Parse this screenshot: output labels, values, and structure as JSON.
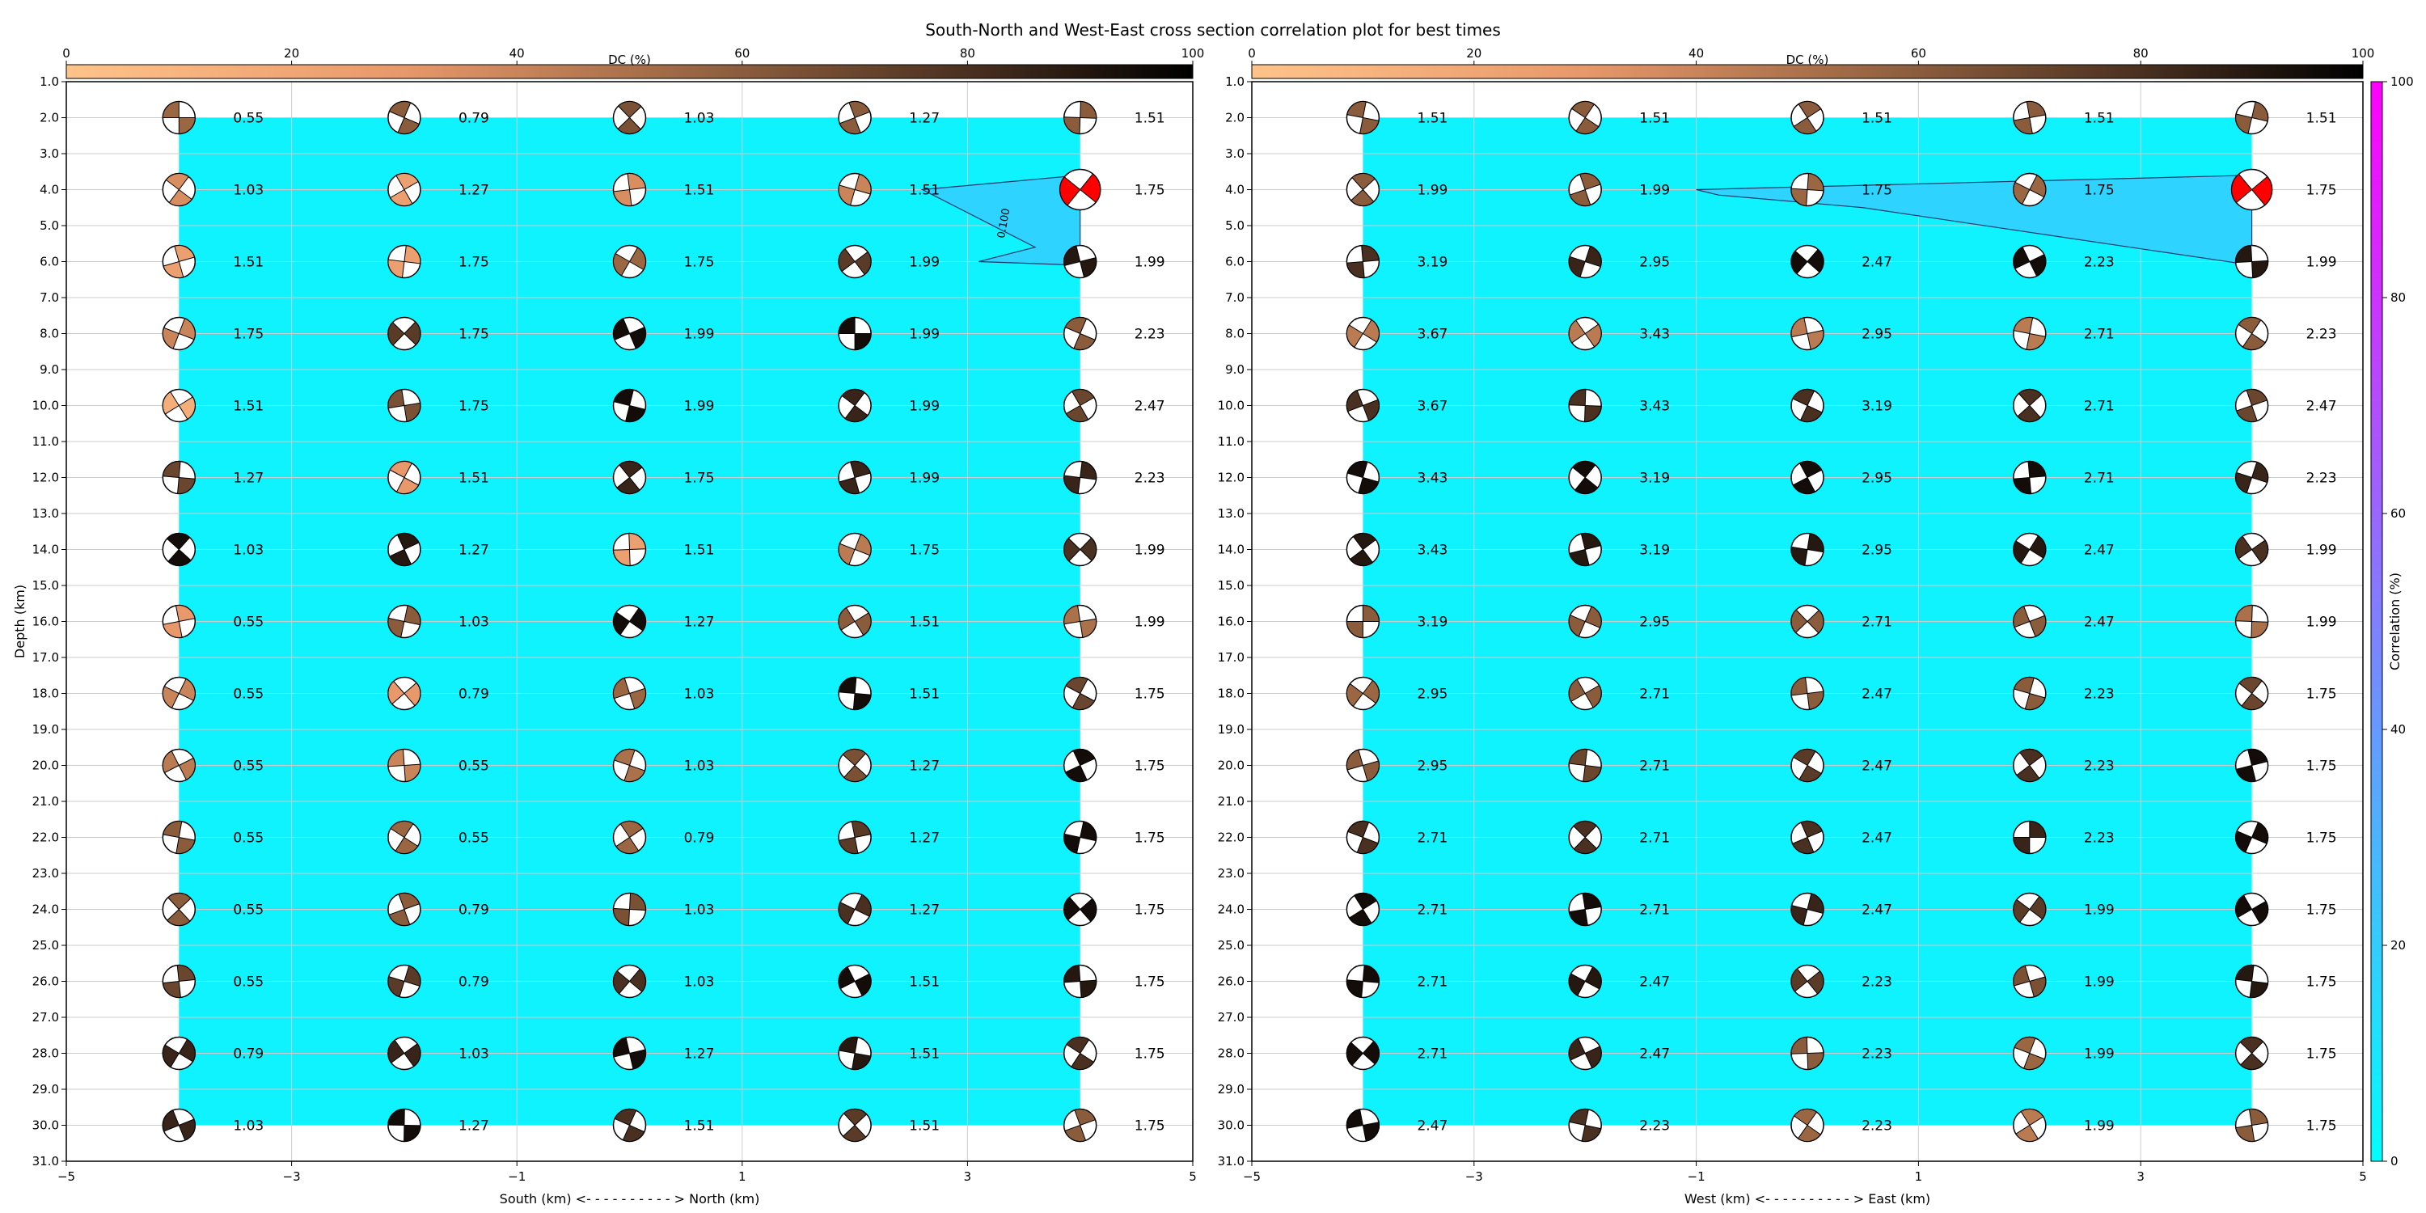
{
  "title": "South-North and West-East cross section correlation plot for best times",
  "dc_colorbar": {
    "label": "DC (%)",
    "ticks": [
      0,
      20,
      40,
      60,
      80,
      100
    ],
    "range": [
      0,
      100
    ]
  },
  "corr_colorbar": {
    "label": "Correlation (%)",
    "ticks": [
      0,
      20,
      40,
      60,
      80,
      100
    ],
    "range": [
      0,
      100
    ]
  },
  "colors": {
    "field": "#0ff2ff",
    "contour_fill": "#2ed3ff",
    "grid": "#cccccc",
    "best_solution": "#ff0000",
    "dc_low": "#ffc38a",
    "dc_mid": "#9b6743",
    "dc_high": "#000000",
    "corr_low": "#00ffff",
    "corr_high": "#ff00ff"
  },
  "chart_data": [
    {
      "type": "heatmap",
      "panel": "south-north",
      "xlabel": "South (km) <- - - - - - - - - - > North (km)",
      "ylabel": "Depth (km)",
      "xlim": [
        -5,
        5
      ],
      "ylim": [
        31,
        1
      ],
      "xticks": [
        "−5",
        "−3",
        "−1",
        "1",
        "3",
        "5"
      ],
      "yticks": [
        "1.0",
        "2.0",
        "3.0",
        "4.0",
        "5.0",
        "6.0",
        "7.0",
        "8.0",
        "9.0",
        "10.0",
        "11.0",
        "12.0",
        "13.0",
        "14.0",
        "15.0",
        "16.0",
        "17.0",
        "18.0",
        "19.0",
        "20.0",
        "21.0",
        "22.0",
        "23.0",
        "24.0",
        "25.0",
        "26.0",
        "27.0",
        "28.0",
        "29.0",
        "30.0",
        "31.0"
      ],
      "x": [
        -4,
        -2,
        0,
        2,
        4
      ],
      "depths": [
        2,
        4,
        6,
        8,
        10,
        12,
        14,
        16,
        18,
        20,
        22,
        24,
        26,
        28,
        30
      ],
      "times": [
        [
          "0.55",
          "0.79",
          "1.03",
          "1.27",
          "1.51"
        ],
        [
          "1.03",
          "1.27",
          "1.51",
          "1.51",
          "1.75"
        ],
        [
          "1.51",
          "1.75",
          "1.75",
          "1.99",
          "1.99"
        ],
        [
          "1.75",
          "1.75",
          "1.99",
          "1.99",
          "2.23"
        ],
        [
          "1.51",
          "1.75",
          "1.99",
          "1.99",
          "2.47"
        ],
        [
          "1.27",
          "1.51",
          "1.75",
          "1.99",
          "2.23"
        ],
        [
          "1.03",
          "1.27",
          "1.51",
          "1.75",
          "1.99"
        ],
        [
          "0.55",
          "1.03",
          "1.27",
          "1.51",
          "1.99"
        ],
        [
          "0.55",
          "0.79",
          "1.03",
          "1.51",
          "1.75"
        ],
        [
          "0.55",
          "0.55",
          "1.03",
          "1.27",
          "1.75"
        ],
        [
          "0.55",
          "0.55",
          "0.79",
          "1.27",
          "1.75"
        ],
        [
          "0.55",
          "0.79",
          "1.03",
          "1.27",
          "1.75"
        ],
        [
          "0.55",
          "0.79",
          "1.03",
          "1.51",
          "1.75"
        ],
        [
          "0.79",
          "1.03",
          "1.27",
          "1.51",
          "1.75"
        ],
        [
          "1.03",
          "1.27",
          "1.51",
          "1.51",
          "1.75"
        ]
      ],
      "dc": [
        [
          55,
          60,
          65,
          60,
          60
        ],
        [
          35,
          25,
          35,
          40,
          55
        ],
        [
          25,
          25,
          55,
          75,
          90
        ],
        [
          40,
          75,
          95,
          95,
          60
        ],
        [
          15,
          65,
          95,
          85,
          70
        ],
        [
          70,
          30,
          85,
          85,
          85
        ],
        [
          95,
          90,
          25,
          45,
          80
        ],
        [
          30,
          60,
          95,
          60,
          50
        ],
        [
          40,
          30,
          55,
          95,
          70
        ],
        [
          45,
          40,
          50,
          65,
          95
        ],
        [
          60,
          55,
          55,
          75,
          95
        ],
        [
          60,
          60,
          65,
          80,
          95
        ],
        [
          70,
          75,
          80,
          95,
          90
        ],
        [
          85,
          85,
          95,
          90,
          80
        ],
        [
          85,
          95,
          80,
          75,
          60
        ]
      ],
      "correlation_field": {
        "x_range": [
          -4,
          4
        ],
        "depth_range": [
          2,
          30
        ],
        "value": 0
      },
      "contour": {
        "label": "0.100",
        "level": 0.1,
        "points": [
          [
            2.6,
            4
          ],
          [
            4,
            3.6
          ],
          [
            4,
            6.1
          ],
          [
            3.1,
            6.0
          ],
          [
            3.6,
            5.6
          ]
        ]
      },
      "best_solution": {
        "x": 4,
        "depth": 4
      }
    },
    {
      "type": "heatmap",
      "panel": "west-east",
      "xlabel": "West (km) <- - - - - - - - - - > East (km)",
      "xlim": [
        -5,
        5
      ],
      "ylim": [
        31,
        1
      ],
      "xticks": [
        "−5",
        "−3",
        "−1",
        "1",
        "3",
        "5"
      ],
      "yticks": [
        "1.0",
        "2.0",
        "3.0",
        "4.0",
        "5.0",
        "6.0",
        "7.0",
        "8.0",
        "9.0",
        "10.0",
        "11.0",
        "12.0",
        "13.0",
        "14.0",
        "15.0",
        "16.0",
        "17.0",
        "18.0",
        "19.0",
        "20.0",
        "21.0",
        "22.0",
        "23.0",
        "24.0",
        "25.0",
        "26.0",
        "27.0",
        "28.0",
        "29.0",
        "30.0",
        "31.0"
      ],
      "x": [
        -4,
        -2,
        0,
        2,
        4
      ],
      "depths": [
        2,
        4,
        6,
        8,
        10,
        12,
        14,
        16,
        18,
        20,
        22,
        24,
        26,
        28,
        30
      ],
      "times": [
        [
          "1.51",
          "1.51",
          "1.51",
          "1.51",
          "1.51"
        ],
        [
          "1.99",
          "1.99",
          "1.75",
          "1.75",
          "1.75"
        ],
        [
          "3.19",
          "2.95",
          "2.47",
          "2.23",
          "1.99"
        ],
        [
          "3.67",
          "3.43",
          "2.95",
          "2.71",
          "2.23"
        ],
        [
          "3.67",
          "3.43",
          "3.19",
          "2.71",
          "2.47"
        ],
        [
          "3.43",
          "3.19",
          "2.95",
          "2.71",
          "2.23"
        ],
        [
          "3.43",
          "3.19",
          "2.95",
          "2.47",
          "1.99"
        ],
        [
          "3.19",
          "2.95",
          "2.71",
          "2.47",
          "1.99"
        ],
        [
          "2.95",
          "2.71",
          "2.47",
          "2.23",
          "1.75"
        ],
        [
          "2.95",
          "2.71",
          "2.47",
          "2.23",
          "1.75"
        ],
        [
          "2.71",
          "2.71",
          "2.47",
          "2.23",
          "1.75"
        ],
        [
          "2.71",
          "2.71",
          "2.47",
          "1.99",
          "1.75"
        ],
        [
          "2.71",
          "2.47",
          "2.23",
          "1.99",
          "1.75"
        ],
        [
          "2.71",
          "2.47",
          "2.23",
          "1.99",
          "1.75"
        ],
        [
          "2.47",
          "2.23",
          "2.23",
          "1.99",
          "1.75"
        ]
      ],
      "dc": [
        [
          60,
          60,
          60,
          60,
          60
        ],
        [
          60,
          60,
          55,
          55,
          55
        ],
        [
          80,
          85,
          95,
          95,
          90
        ],
        [
          45,
          45,
          45,
          45,
          60
        ],
        [
          80,
          80,
          80,
          80,
          70
        ],
        [
          95,
          95,
          95,
          95,
          85
        ],
        [
          90,
          90,
          90,
          90,
          80
        ],
        [
          60,
          60,
          60,
          60,
          50
        ],
        [
          55,
          60,
          60,
          60,
          70
        ],
        [
          60,
          70,
          75,
          80,
          95
        ],
        [
          80,
          80,
          80,
          85,
          95
        ],
        [
          95,
          95,
          85,
          75,
          95
        ],
        [
          95,
          90,
          75,
          65,
          90
        ],
        [
          95,
          85,
          60,
          55,
          80
        ],
        [
          95,
          80,
          55,
          45,
          60
        ]
      ],
      "correlation_field": {
        "x_range": [
          -4,
          4
        ],
        "depth_range": [
          2,
          30
        ],
        "value": 0
      },
      "contour": {
        "label": "",
        "level": 0.1,
        "points": [
          [
            -1,
            4
          ],
          [
            4,
            3.6
          ],
          [
            4,
            6.1
          ],
          [
            0.5,
            4.5
          ],
          [
            -0.8,
            4.15
          ]
        ]
      },
      "best_solution": {
        "x": 4,
        "depth": 4
      }
    }
  ]
}
